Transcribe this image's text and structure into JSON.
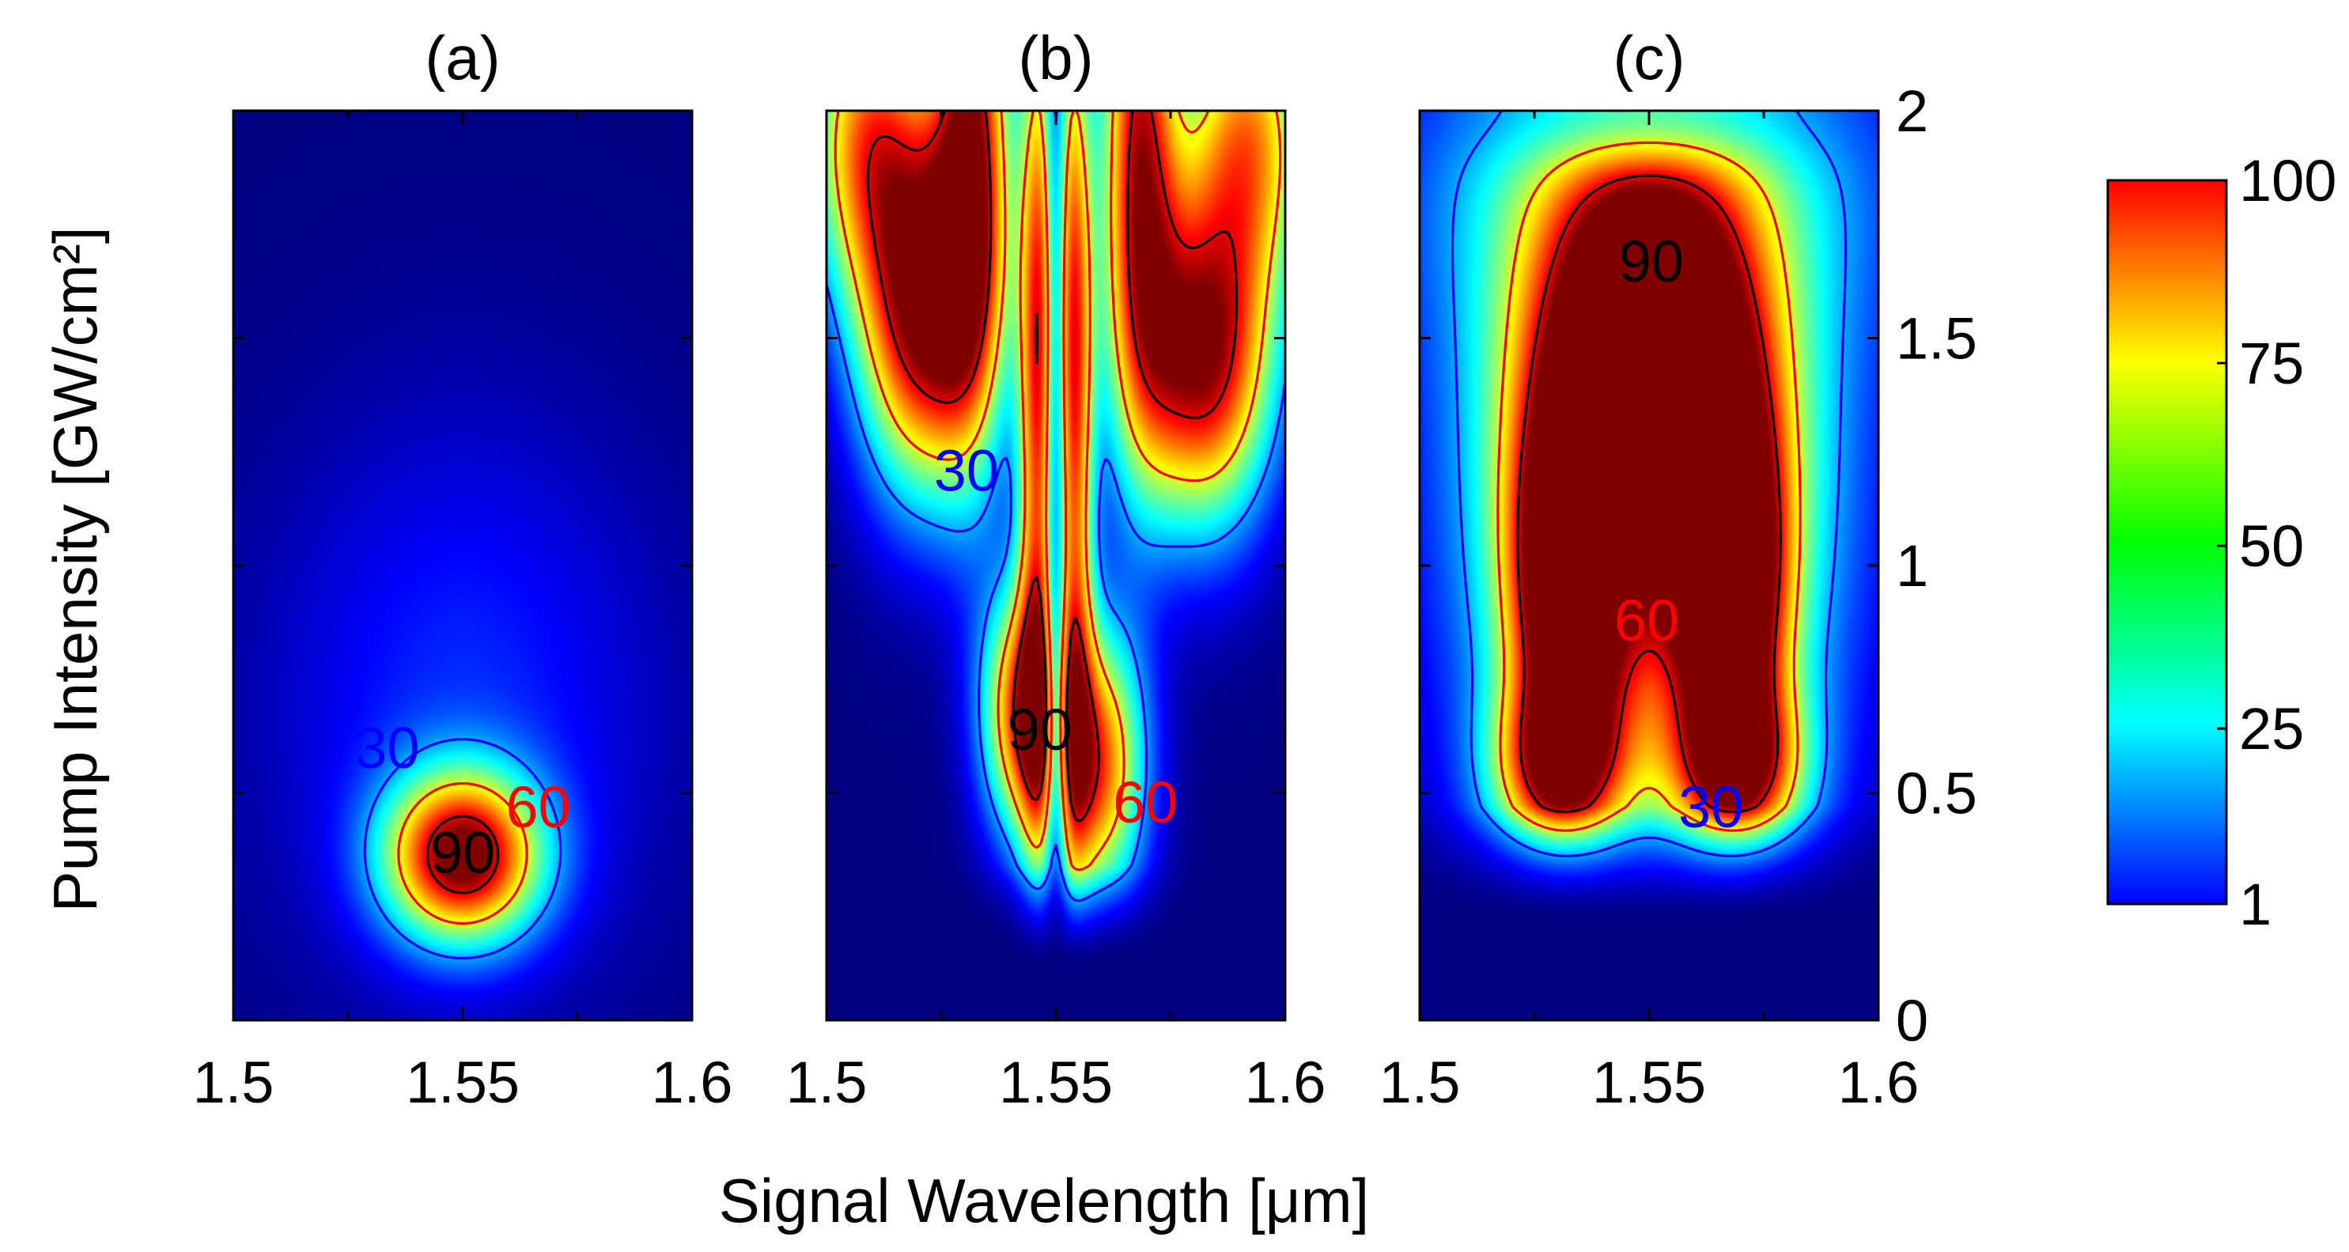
{
  "chart_data": {
    "type": "heatmap",
    "xlabel": "Signal Wavelength [μm]",
    "ylabel": "Pump Intensity [GW/cm²]",
    "xlim": [
      1.5,
      1.6
    ],
    "ylim": [
      0,
      2
    ],
    "x_ticks": [
      "1.5",
      "1.55",
      "1.6"
    ],
    "y_ticks": [
      "0",
      "0.5",
      "1",
      "1.5",
      "2"
    ],
    "colorbar": {
      "range": [
        1,
        100
      ],
      "ticks": [
        "1",
        "25",
        "50",
        "75",
        "100"
      ],
      "colormap": "jet",
      "colors": [
        "#0000ff",
        "#00ffff",
        "#00ff00",
        "#ffff00",
        "#ff0000"
      ]
    },
    "contour_levels": [
      {
        "level": 30,
        "style": "short-dash",
        "color": "#0000ff"
      },
      {
        "level": 60,
        "style": "long-dash",
        "color": "#ff0000"
      },
      {
        "level": 90,
        "style": "long-dash",
        "color": "#000000"
      }
    ],
    "panels": [
      {
        "title": "(a)",
        "peaks": [
          {
            "x": 1.55,
            "y": 0.36,
            "value": 96
          }
        ],
        "labels": [
          {
            "text": "30",
            "x": 1.5335,
            "y": 0.6,
            "color": "#0000ff"
          },
          {
            "text": "60",
            "x": 1.5665,
            "y": 0.47,
            "color": "#ff0000"
          },
          {
            "text": "90",
            "x": 1.55,
            "y": 0.37,
            "color": "#000000"
          }
        ]
      },
      {
        "title": "(b)",
        "peaks": [
          {
            "x": 1.522,
            "y": 1.55,
            "value": 95
          },
          {
            "x": 1.582,
            "y": 1.45,
            "value": 95
          },
          {
            "x": 1.545,
            "y": 0.65,
            "value": 94
          },
          {
            "x": 1.562,
            "y": 0.55,
            "value": 90
          }
        ],
        "labels": [
          {
            "text": "30",
            "x": 1.5305,
            "y": 1.21,
            "color": "#0000ff"
          },
          {
            "text": "90",
            "x": 1.5465,
            "y": 0.64,
            "color": "#000000"
          },
          {
            "text": "60",
            "x": 1.5695,
            "y": 0.48,
            "color": "#ff0000"
          }
        ]
      },
      {
        "title": "(c)",
        "peaks": [
          {
            "x": 1.55,
            "y": 1.45,
            "value": 97
          },
          {
            "x": 1.532,
            "y": 0.95,
            "value": 94
          },
          {
            "x": 1.568,
            "y": 0.95,
            "value": 94
          }
        ],
        "labels": [
          {
            "text": "90",
            "x": 1.5505,
            "y": 1.67,
            "color": "#000000"
          },
          {
            "text": "60",
            "x": 1.5495,
            "y": 0.88,
            "color": "#ff0000"
          },
          {
            "text": "30",
            "x": 1.5635,
            "y": 0.47,
            "color": "#0000ff"
          }
        ]
      }
    ]
  }
}
